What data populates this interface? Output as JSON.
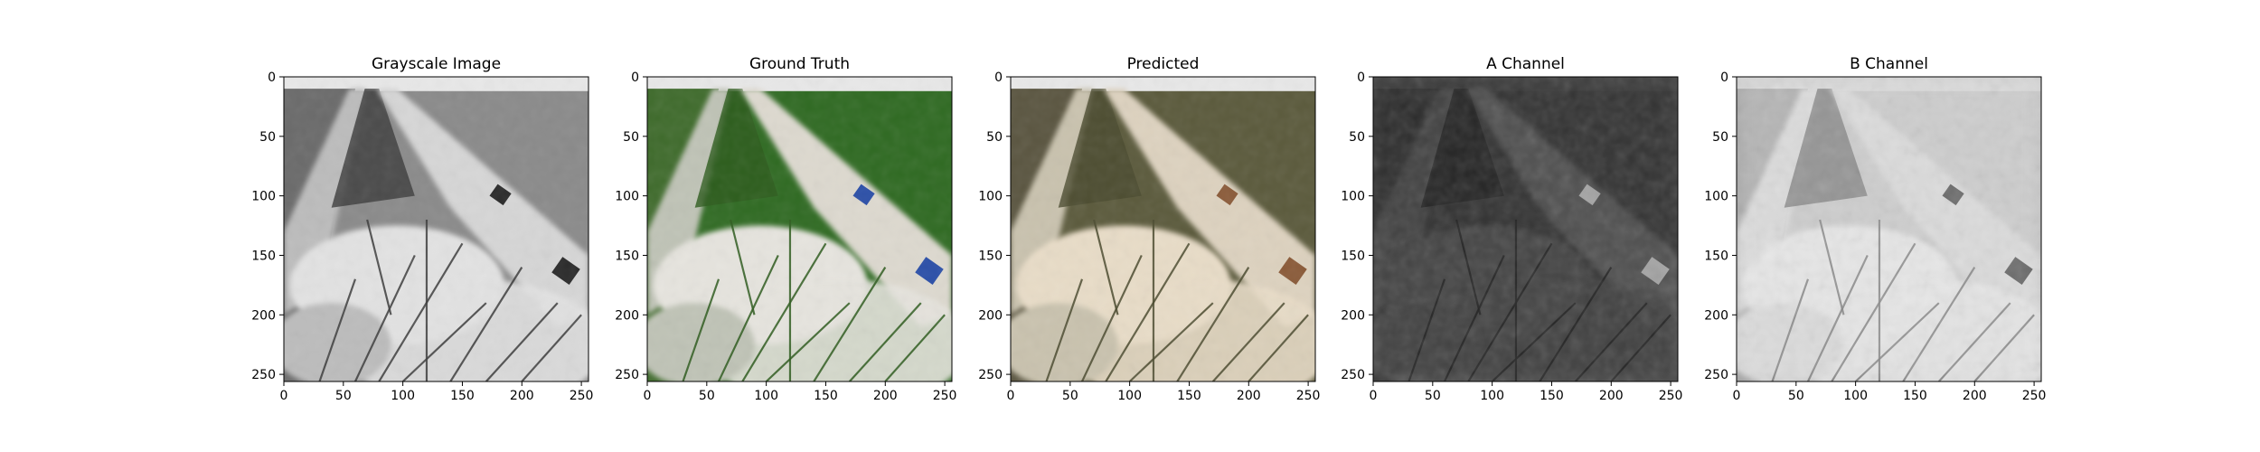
{
  "colors": {
    "figure_background": "#ffffff",
    "axes_spine": "#000000",
    "tick_text": "#000000",
    "title_text": "#000000"
  },
  "chart_data": [
    {
      "type": "heatmap",
      "title": "Grayscale Image",
      "content": "grayscale photo of a rice paddy field with a white irrigation pipe and grass tufts",
      "xlim": [
        0,
        256
      ],
      "ylim": [
        256,
        0
      ],
      "xticks": [
        0,
        50,
        100,
        150,
        200,
        250
      ],
      "yticks": [
        0,
        50,
        100,
        150,
        200,
        250
      ],
      "grid": false
    },
    {
      "type": "heatmap",
      "title": "Ground Truth",
      "content": "color photo: green rice paddy, white pipe with blue coupling, brown soil",
      "xlim": [
        0,
        256
      ],
      "ylim": [
        256,
        0
      ],
      "xticks": [
        0,
        50,
        100,
        150,
        200,
        250
      ],
      "yticks": [
        0,
        50,
        100,
        150,
        200,
        250
      ],
      "grid": false
    },
    {
      "type": "heatmap",
      "title": "Predicted",
      "content": "colorized prediction with muted sepia/olive tones",
      "xlim": [
        0,
        256
      ],
      "ylim": [
        256,
        0
      ],
      "xticks": [
        0,
        50,
        100,
        150,
        200,
        250
      ],
      "yticks": [
        0,
        50,
        100,
        150,
        200,
        250
      ],
      "grid": false
    },
    {
      "type": "heatmap",
      "title": "A Channel",
      "content": "dark grayscale map of predicted A channel, mostly mid-dark gray with a bright spot near the pipe coupling",
      "xlim": [
        0,
        256
      ],
      "ylim": [
        256,
        0
      ],
      "xticks": [
        0,
        50,
        100,
        150,
        200,
        250
      ],
      "yticks": [
        0,
        50,
        100,
        150,
        200,
        250
      ],
      "grid": false
    },
    {
      "type": "heatmap",
      "title": "B Channel",
      "content": "light grayscale map of predicted B channel with blocky texture and dark patches",
      "xlim": [
        0,
        256
      ],
      "ylim": [
        256,
        0
      ],
      "xticks": [
        0,
        50,
        100,
        150,
        200,
        250
      ],
      "yticks": [
        0,
        50,
        100,
        150,
        200,
        250
      ],
      "grid": false
    }
  ]
}
